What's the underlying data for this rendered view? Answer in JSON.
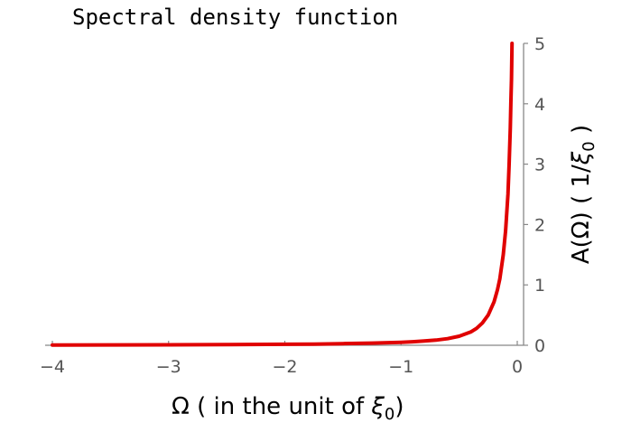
{
  "chart_data": {
    "type": "line",
    "title": "Spectral density function",
    "xlabel": "Ω ( in the unit of ξ0)",
    "ylabel": "A(Ω) ( 1/ξ0 )",
    "xlim": [
      -4,
      0
    ],
    "ylim": [
      0,
      5
    ],
    "x_ticks": [
      "−4",
      "−3",
      "−2",
      "−1",
      "0"
    ],
    "y_ticks": [
      "0",
      "1",
      "2",
      "3",
      "4",
      "5"
    ],
    "grid": false,
    "series": [
      {
        "color": "#e00000",
        "points": [
          [
            -4.0,
            0.005
          ],
          [
            -3.5,
            0.006
          ],
          [
            -3.0,
            0.008
          ],
          [
            -2.5,
            0.011
          ],
          [
            -2.0,
            0.016
          ],
          [
            -1.75,
            0.02
          ],
          [
            -1.5,
            0.027
          ],
          [
            -1.25,
            0.036
          ],
          [
            -1.0,
            0.05
          ],
          [
            -0.9,
            0.058
          ],
          [
            -0.8,
            0.07
          ],
          [
            -0.7,
            0.085
          ],
          [
            -0.6,
            0.11
          ],
          [
            -0.5,
            0.15
          ],
          [
            -0.4,
            0.22
          ],
          [
            -0.35,
            0.28
          ],
          [
            -0.3,
            0.37
          ],
          [
            -0.25,
            0.5
          ],
          [
            -0.2,
            0.72
          ],
          [
            -0.17,
            0.92
          ],
          [
            -0.15,
            1.1
          ],
          [
            -0.12,
            1.5
          ],
          [
            -0.1,
            1.9
          ],
          [
            -0.08,
            2.5
          ],
          [
            -0.07,
            3.0
          ],
          [
            -0.06,
            3.6
          ],
          [
            -0.055,
            4.0
          ],
          [
            -0.05,
            4.4
          ],
          [
            -0.045,
            5.0
          ]
        ]
      }
    ]
  }
}
